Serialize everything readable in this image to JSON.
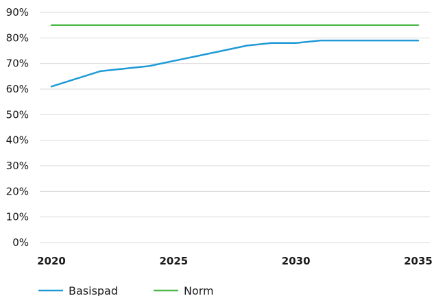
{
  "chart_data": {
    "type": "line",
    "title": "",
    "xlabel": "",
    "ylabel": "",
    "x_ticks": [
      "2020",
      "2025",
      "2030",
      "2035"
    ],
    "y_ticks": [
      "0%",
      "10%",
      "20%",
      "30%",
      "40%",
      "50%",
      "60%",
      "70%",
      "80%",
      "90%"
    ],
    "xlim": [
      2020,
      2035
    ],
    "ylim": [
      0,
      90
    ],
    "grid": true,
    "legend_position": "bottom-left",
    "series": [
      {
        "name": "Basispad",
        "color": "#1f9ad6",
        "x": [
          2020,
          2021,
          2022,
          2023,
          2024,
          2025,
          2026,
          2027,
          2028,
          2029,
          2030,
          2031,
          2032,
          2033,
          2034,
          2035
        ],
        "y": [
          61,
          64,
          67,
          68,
          69,
          71,
          73,
          75,
          77,
          78,
          78,
          79,
          79,
          79,
          79,
          79
        ]
      },
      {
        "name": "Norm",
        "color": "#4db848",
        "x": [
          2020,
          2035
        ],
        "y": [
          85,
          85
        ]
      }
    ]
  }
}
